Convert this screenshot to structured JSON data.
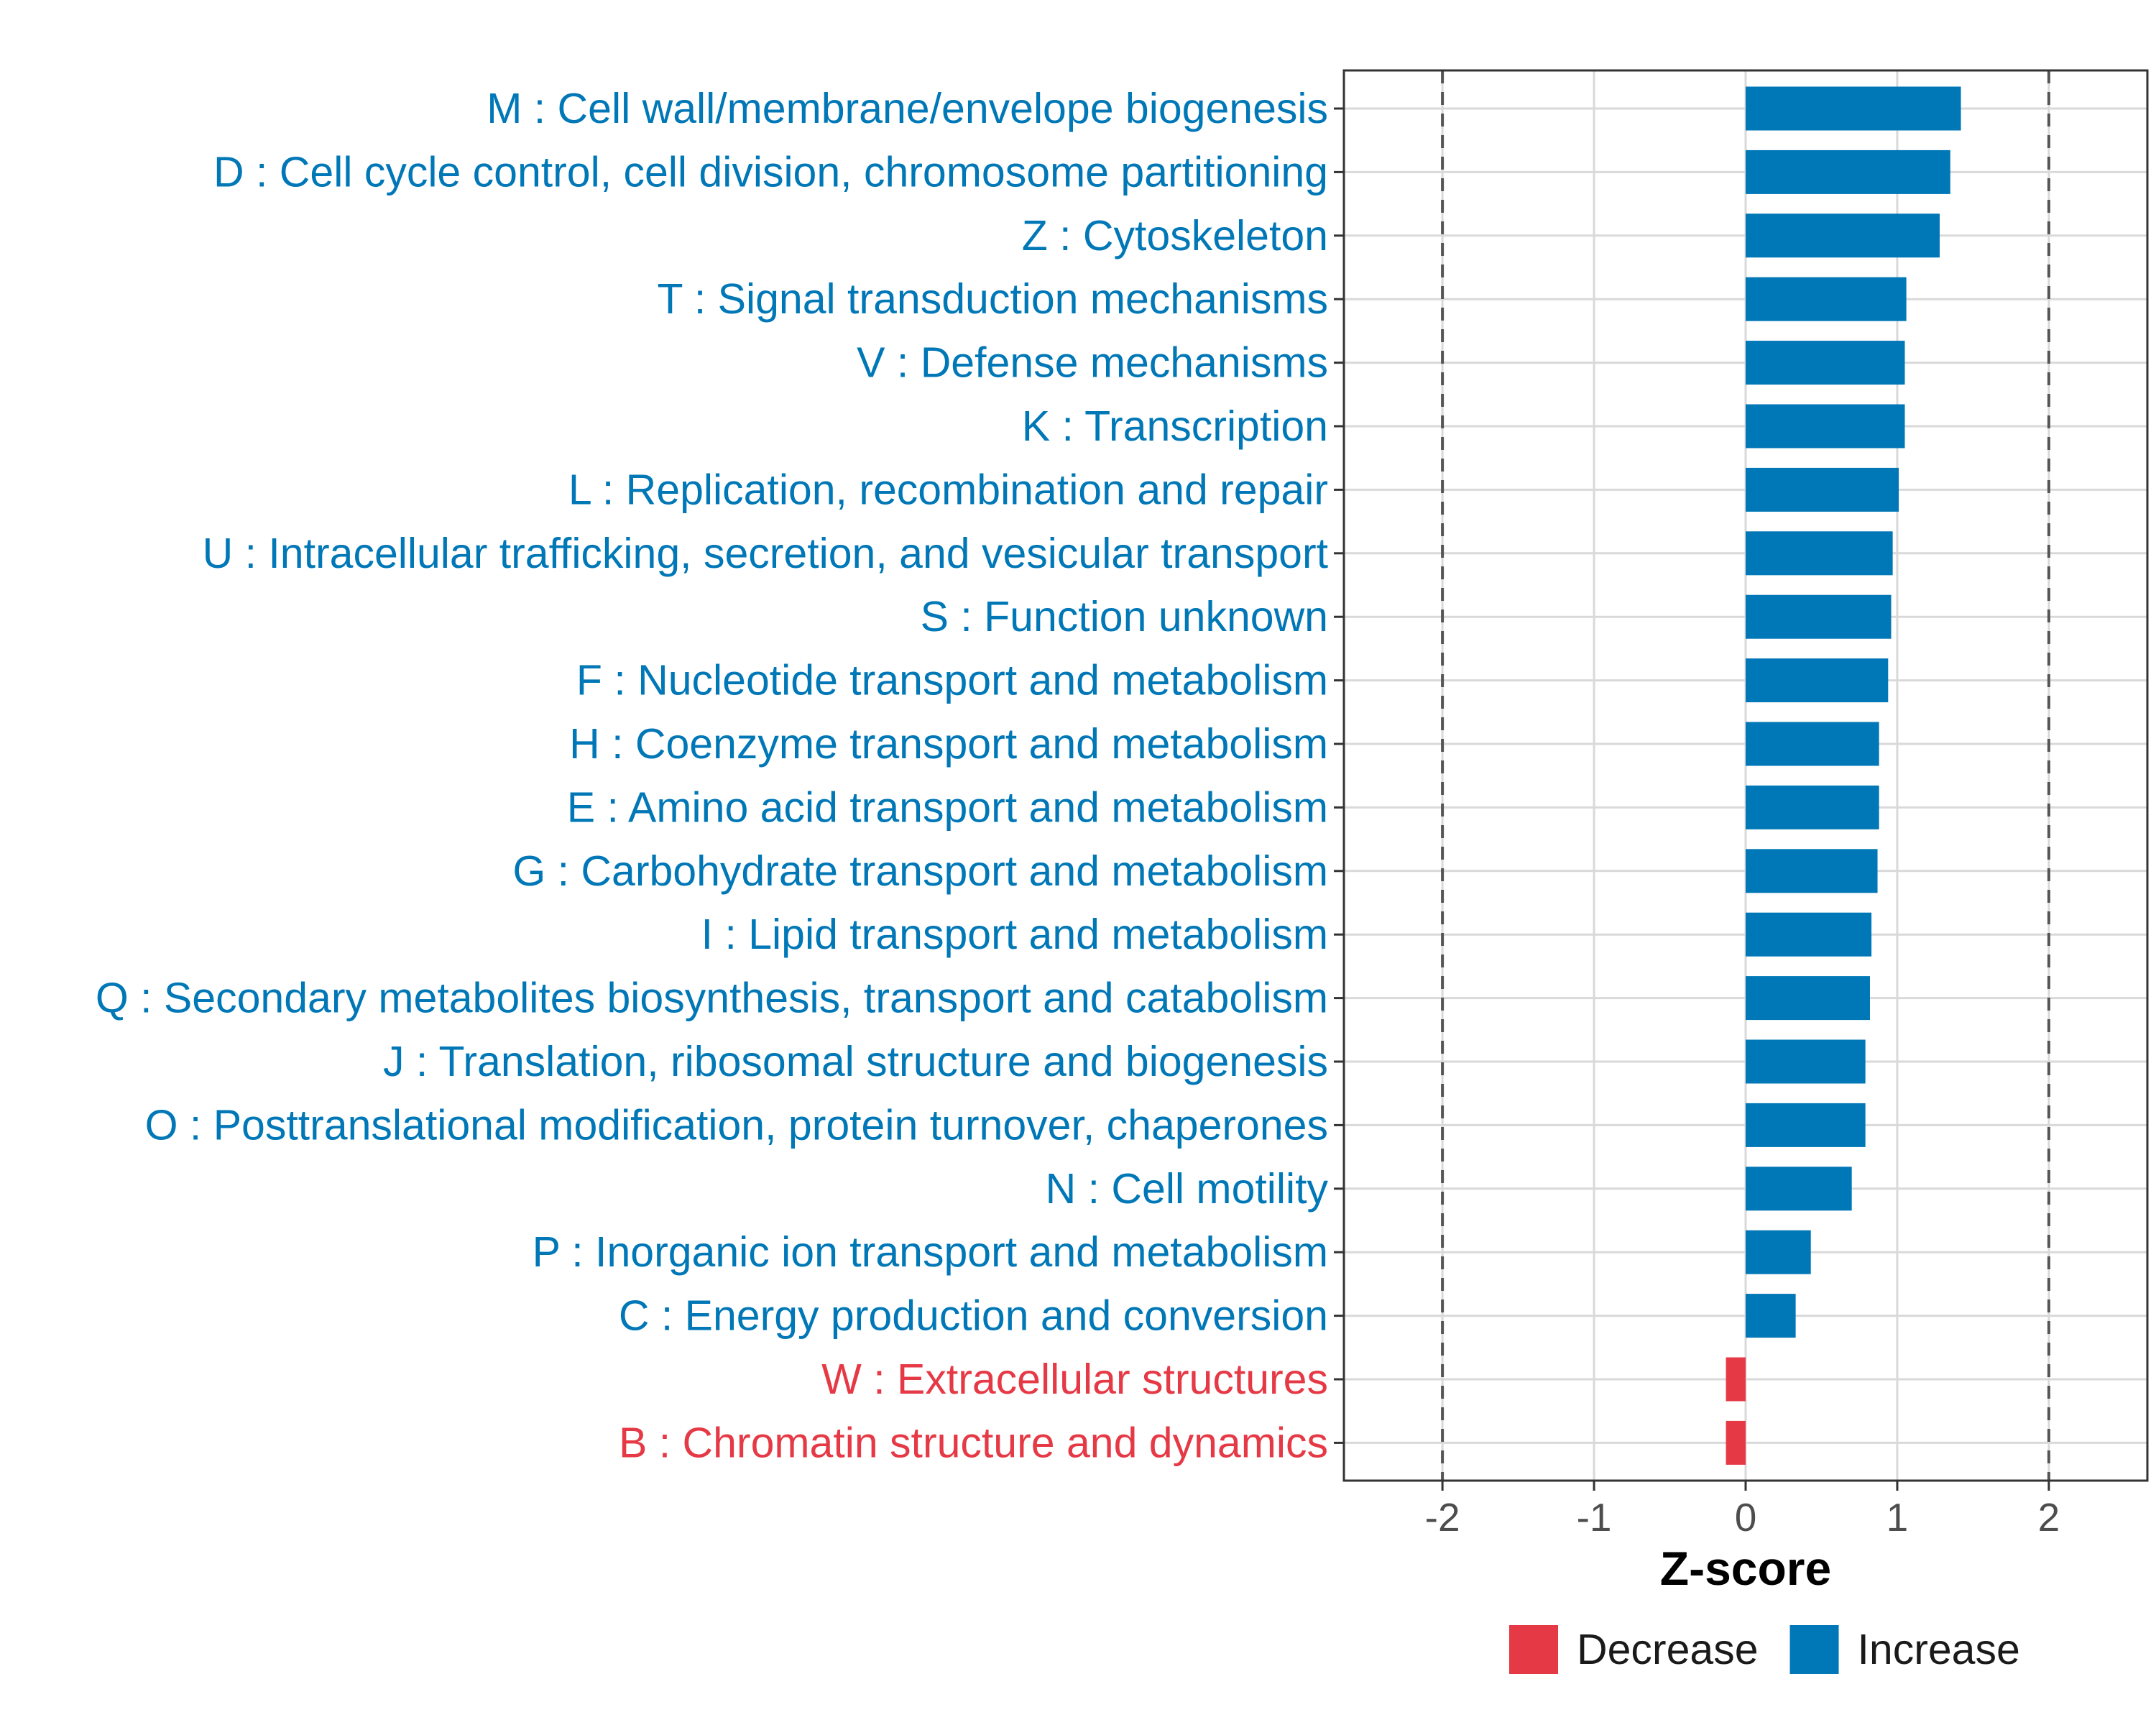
{
  "chart_data": {
    "type": "bar",
    "orientation": "horizontal",
    "title": "",
    "xlabel": "Z-score",
    "ylabel": "",
    "xlim": [
      -2.65,
      2.65
    ],
    "xticks": [
      -2,
      -1,
      0,
      1,
      2
    ],
    "xtick_labels": [
      "-2",
      "-1",
      "0",
      "1",
      "2"
    ],
    "threshold_lines": [
      -2,
      2
    ],
    "grid": true,
    "legend_position": "bottom",
    "legend": [
      {
        "name": "Decrease",
        "color": "#e63946"
      },
      {
        "name": "Increase",
        "color": "#0077b6"
      }
    ],
    "categories": [
      "M : Cell wall/membrane/envelope biogenesis",
      "D : Cell cycle control, cell division, chromosome partitioning",
      "Z : Cytoskeleton",
      "T : Signal transduction mechanisms",
      "V : Defense mechanisms",
      "K : Transcription",
      "L : Replication, recombination and repair",
      "U : Intracellular trafficking, secretion, and vesicular transport",
      "S : Function unknown",
      "F : Nucleotide transport and metabolism",
      "H : Coenzyme transport and metabolism",
      "E : Amino acid transport and metabolism",
      "G : Carbohydrate transport and metabolism",
      "I : Lipid transport and metabolism",
      "Q : Secondary metabolites biosynthesis, transport and catabolism",
      "J : Translation, ribosomal structure and biogenesis",
      "O : Posttranslational modification, protein turnover, chaperones",
      "N : Cell motility",
      "P : Inorganic ion transport and metabolism",
      "C : Energy production and conversion",
      "W : Extracellular structures",
      "B : Chromatin structure and dynamics"
    ],
    "values": [
      1.42,
      1.35,
      1.28,
      1.06,
      1.05,
      1.05,
      1.01,
      0.97,
      0.96,
      0.94,
      0.88,
      0.88,
      0.87,
      0.83,
      0.82,
      0.79,
      0.79,
      0.7,
      0.43,
      0.33,
      -0.13,
      -0.13
    ],
    "series_by_category": [
      "Increase",
      "Increase",
      "Increase",
      "Increase",
      "Increase",
      "Increase",
      "Increase",
      "Increase",
      "Increase",
      "Increase",
      "Increase",
      "Increase",
      "Increase",
      "Increase",
      "Increase",
      "Increase",
      "Increase",
      "Increase",
      "Increase",
      "Increase",
      "Decrease",
      "Decrease"
    ]
  }
}
